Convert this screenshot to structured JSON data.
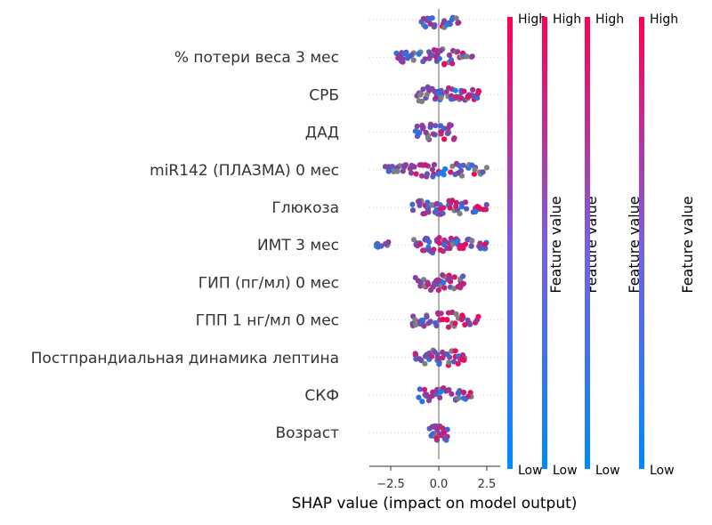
{
  "chart_data": {
    "type": "scatter",
    "subtype": "shap-beeswarm",
    "title": "",
    "xlabel": "SHAP value (impact on model output)",
    "xlim": [
      -3.8,
      3.2
    ],
    "xticks": [
      -2.5,
      0.0,
      2.5
    ],
    "xtick_labels": [
      "−2.5",
      "0.0",
      "2.5"
    ],
    "grid": "dotted horizontal row guides",
    "colors": {
      "low": "#008afb",
      "high": "#ff0052",
      "mid": "#7f7f7f",
      "zero_line": "#999999"
    },
    "features": [
      {
        "name": "",
        "partial": true,
        "values": [
          -0.8,
          -0.6,
          -0.4,
          -0.2,
          0.1,
          0.3,
          0.5,
          0.8,
          1.0
        ]
      },
      {
        "name": "% потери веса 3 мес",
        "values": [
          -2.1,
          -2.0,
          -1.9,
          -1.8,
          -1.6,
          -1.3,
          -1.0,
          -0.8,
          -0.6,
          -0.4,
          -0.2,
          0.0,
          0.2,
          0.4,
          0.6,
          0.8,
          1.0,
          1.2,
          1.4,
          1.7
        ]
      },
      {
        "name": "СРБ",
        "values": [
          -1.1,
          -0.9,
          -0.7,
          -0.5,
          -0.3,
          -0.1,
          0.0,
          0.2,
          0.4,
          0.6,
          0.8,
          1.0,
          1.2,
          1.4,
          1.6,
          1.8,
          2.0
        ]
      },
      {
        "name": "ДАД",
        "values": [
          -1.2,
          -1.0,
          -0.8,
          -0.6,
          -0.4,
          -0.2,
          0.0,
          0.2,
          0.4,
          0.6,
          0.8
        ]
      },
      {
        "name": "miR142 (ПЛАЗМА) 0 мес",
        "values": [
          -2.7,
          -2.4,
          -2.1,
          -1.8,
          -1.5,
          -1.2,
          -0.9,
          -0.6,
          -0.3,
          0.0,
          0.3,
          0.6,
          0.9,
          1.2,
          1.5,
          1.8,
          2.1,
          2.4
        ]
      },
      {
        "name": "Глюкоза",
        "values": [
          -1.3,
          -1.1,
          -0.9,
          -0.7,
          -0.5,
          -0.3,
          -0.1,
          0.1,
          0.3,
          0.5,
          0.7,
          0.9,
          1.2,
          1.5,
          1.8,
          2.1,
          2.4
        ]
      },
      {
        "name": "ИМТ 3 мес",
        "values": [
          -3.3,
          -3.1,
          -2.7,
          -1.2,
          -1.0,
          -0.8,
          -0.6,
          -0.4,
          -0.2,
          0.0,
          0.2,
          0.4,
          0.6,
          0.8,
          1.0,
          1.2,
          1.5,
          1.8,
          2.2,
          2.5
        ]
      },
      {
        "name": "ГИП (пг/мл) 0 мес",
        "values": [
          -1.1,
          -0.9,
          -0.7,
          -0.5,
          -0.3,
          -0.1,
          0.1,
          0.3,
          0.5,
          0.7,
          0.9,
          1.1,
          1.2
        ]
      },
      {
        "name": "ГПП 1 нг/мл 0 мес",
        "values": [
          -1.4,
          -1.2,
          -1.0,
          -0.8,
          -0.6,
          -0.4,
          -0.2,
          0.0,
          0.2,
          0.4,
          0.6,
          0.8,
          1.0,
          1.3,
          1.6,
          2.0
        ]
      },
      {
        "name": "Постпрандиальная динамика лептина",
        "values": [
          -1.3,
          -1.1,
          -0.9,
          -0.7,
          -0.5,
          -0.3,
          -0.1,
          0.1,
          0.3,
          0.5,
          0.7,
          0.9,
          1.1,
          1.3
        ]
      },
      {
        "name": "СКФ",
        "values": [
          -1.0,
          -0.8,
          -0.6,
          -0.4,
          -0.2,
          0.0,
          0.2,
          0.4,
          0.6,
          0.8,
          1.0,
          1.3,
          1.6
        ]
      },
      {
        "name": "Возраст",
        "values": [
          -0.4,
          -0.3,
          -0.2,
          -0.1,
          0.0,
          0.1,
          0.2,
          0.3,
          0.4
        ]
      }
    ],
    "colorbars": [
      {
        "high_label": "High",
        "low_label": "Low",
        "title": "Feature value"
      },
      {
        "high_label": "High",
        "low_label": "Low",
        "title": "Feature value"
      },
      {
        "high_label": "High",
        "low_label": "Low",
        "title": "Feature value"
      },
      {
        "high_label": "High",
        "low_label": "Low",
        "title": "Feature value"
      }
    ]
  }
}
